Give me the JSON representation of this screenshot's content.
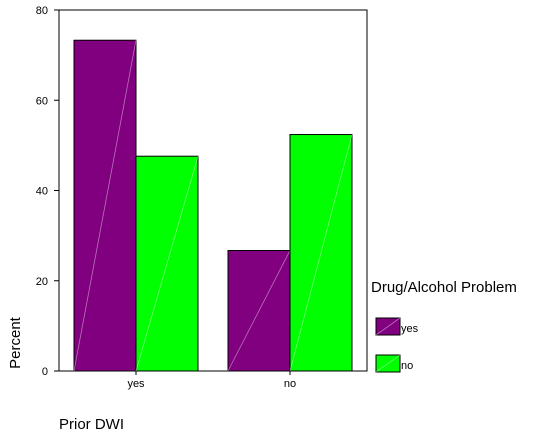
{
  "chart_data": {
    "type": "bar",
    "categories": [
      "yes",
      "no"
    ],
    "series": [
      {
        "name": "yes",
        "values": [
          73.3,
          26.7
        ],
        "color": "#800080"
      },
      {
        "name": "no",
        "values": [
          47.6,
          52.4
        ],
        "color": "#00ff00"
      }
    ],
    "xlabel": "Prior DWI",
    "ylabel": "Percent",
    "ylim": [
      0,
      80
    ],
    "yticks": [
      "0",
      "20",
      "40",
      "60",
      "80"
    ],
    "legend_title": "Drug/Alcohol Problem",
    "legend_position": "right",
    "grid": false
  }
}
